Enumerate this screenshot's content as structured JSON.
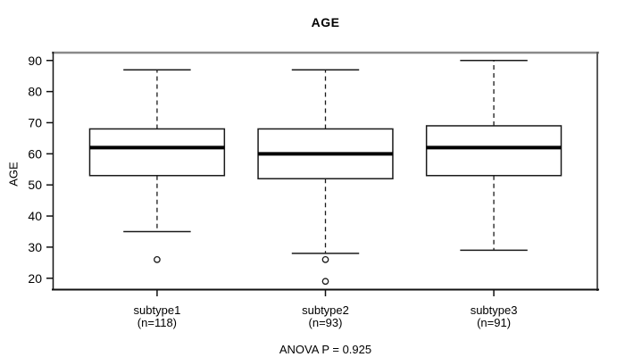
{
  "chart_data": {
    "type": "boxplot",
    "title": "AGE",
    "ylabel": "AGE",
    "xlabel": "",
    "annotation": "ANOVA P = 0.925",
    "yticks": [
      20,
      30,
      40,
      50,
      60,
      70,
      80,
      90
    ],
    "ylim": [
      16.2,
      92.8
    ],
    "xlim": [
      0.38,
      3.62
    ],
    "grid": false,
    "legend": null,
    "box_width": 0.8,
    "staple_ratio": 0.5,
    "groups": [
      {
        "label": "subtype1",
        "sublabel": "(n=118)",
        "n": 118,
        "position": 1,
        "whisker_low": 35,
        "q1": 53,
        "median": 62,
        "q3": 68,
        "whisker_high": 87,
        "outliers": [
          26
        ]
      },
      {
        "label": "subtype2",
        "sublabel": "(n=93)",
        "n": 93,
        "position": 2,
        "whisker_low": 28,
        "q1": 52,
        "median": 60,
        "q3": 68,
        "whisker_high": 87,
        "outliers": [
          26,
          19
        ]
      },
      {
        "label": "subtype3",
        "sublabel": "(n=91)",
        "n": 91,
        "position": 3,
        "whisker_low": 29,
        "q1": 53,
        "median": 62,
        "q3": 69,
        "whisker_high": 90,
        "outliers": []
      }
    ],
    "colors": {
      "background": "#ffffff",
      "box_fill": "#ffffff",
      "box_stroke": "#1a1a1a",
      "median": "#000000",
      "whisker": "#1a1a1a",
      "outlier_stroke": "#1a1a1a",
      "frame_top": "#8a8a8a",
      "frame_right": "#5a5a5a",
      "frame_dark": "#111111",
      "tick_text": "#000000"
    }
  }
}
